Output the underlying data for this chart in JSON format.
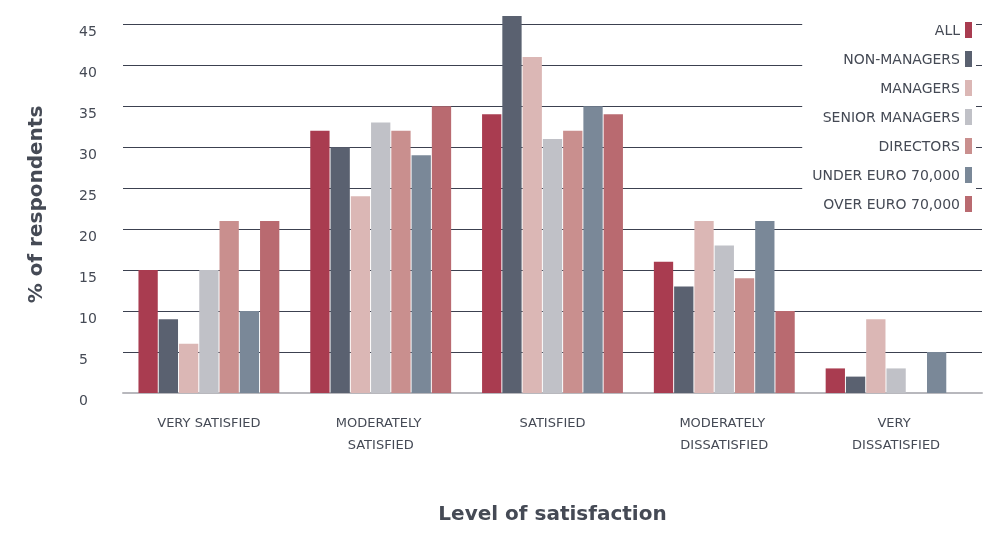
{
  "chart_data": {
    "type": "bar",
    "xlabel": "Level of satisfaction",
    "ylabel": "% of respondents",
    "categories": [
      "VERY SATISFIED",
      "MODERATELY SATISFIED",
      "SATISFIED",
      "MODERATELY DISSATISFIED",
      "VERY DISSATISFIED"
    ],
    "series": [
      {
        "name": "ALL",
        "color": "#a93c50",
        "values": [
          15,
          32,
          34,
          16,
          3
        ]
      },
      {
        "name": "NON-MANAGERS",
        "color": "#5a6170",
        "values": [
          9,
          30,
          46,
          13,
          2
        ]
      },
      {
        "name": "MANAGERS",
        "color": "#dbb7b5",
        "values": [
          6,
          24,
          41,
          21,
          9
        ]
      },
      {
        "name": "SENIOR MANAGERS",
        "color": "#c0c1c7",
        "values": [
          15,
          33,
          31,
          18,
          3
        ]
      },
      {
        "name": "DIRECTORS",
        "color": "#c98f8e",
        "values": [
          21,
          32,
          32,
          14,
          0
        ]
      },
      {
        "name": "UNDER EURO 70,000",
        "color": "#7a8898",
        "values": [
          10,
          29,
          35,
          21,
          5
        ]
      },
      {
        "name": "OVER EURO 70,000",
        "color": "#b96a70",
        "values": [
          21,
          35,
          34,
          10,
          0
        ]
      }
    ],
    "ylim": [
      0,
      46
    ],
    "yticks": [
      0,
      5,
      10,
      15,
      20,
      25,
      30,
      35,
      40,
      45
    ],
    "grid": "y",
    "legend": "top right"
  }
}
